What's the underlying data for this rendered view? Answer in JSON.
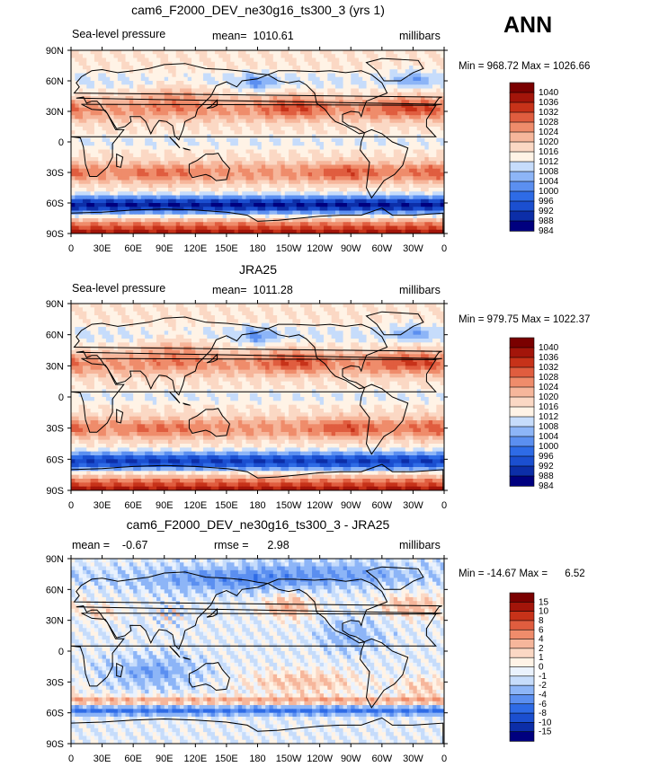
{
  "season": "ANN",
  "units": "millibars",
  "colors": {
    "abs": [
      "#00007f",
      "#0c2ea8",
      "#1b4fd0",
      "#2e6be6",
      "#5b8ff0",
      "#8db5f7",
      "#c6dcfb",
      "#fff3e6",
      "#fbd8c4",
      "#f6b69b",
      "#ef8c6b",
      "#e05d3f",
      "#c73219",
      "#a3150a",
      "#7a0000"
    ],
    "diff": [
      "#00007f",
      "#0c2ea8",
      "#1b4fd0",
      "#2e6be6",
      "#5b8ff0",
      "#8db5f7",
      "#c6dcfb",
      "#eaf2fd",
      "#fff3e6",
      "#fbd8c4",
      "#f6b69b",
      "#ef8c6b",
      "#e05d3f",
      "#c73219",
      "#a3150a",
      "#7a0000"
    ]
  },
  "panels": [
    {
      "title": "cam6_F2000_DEV_ne30g16_ts300_3 (yrs 1)",
      "left_label": "Sea-level pressure",
      "center_label": "mean=  1010.61",
      "right_label": "millibars",
      "minmax": "Min = 968.72 Max = 1026.66"
    },
    {
      "title": "JRA25",
      "left_label": "Sea-level pressure",
      "center_label": "mean=  1011.28",
      "right_label": "millibars",
      "minmax": "Min = 979.75 Max = 1022.37"
    },
    {
      "title": "cam6_F2000_DEV_ne30g16_ts300_3 - JRA25",
      "left_label": "mean =    -0.67",
      "center_label": "rmse =      2.98",
      "right_label": "millibars",
      "minmax": "Min = -14.67 Max =      6.52"
    }
  ],
  "chart_data": [
    {
      "type": "heatmap",
      "title": "cam6_F2000_DEV_ne30g16_ts300_3 (yrs 1)",
      "variable": "Sea-level pressure",
      "units": "millibars",
      "mean": 1010.61,
      "min": 968.72,
      "max": 1026.66,
      "x_ticks": [
        "0",
        "30E",
        "60E",
        "90E",
        "120E",
        "150E",
        "180",
        "150W",
        "120W",
        "90W",
        "60W",
        "30W",
        "0"
      ],
      "y_ticks": [
        "90N",
        "60N",
        "30N",
        "0",
        "30S",
        "60S",
        "90S"
      ],
      "colorbar_levels": [
        "1040",
        "1036",
        "1032",
        "1028",
        "1024",
        "1020",
        "1016",
        "1012",
        "1008",
        "1004",
        "1000",
        "996",
        "992",
        "988",
        "984"
      ]
    },
    {
      "type": "heatmap",
      "title": "JRA25",
      "variable": "Sea-level pressure",
      "units": "millibars",
      "mean": 1011.28,
      "min": 979.75,
      "max": 1022.37,
      "x_ticks": [
        "0",
        "30E",
        "60E",
        "90E",
        "120E",
        "150E",
        "180",
        "150W",
        "120W",
        "90W",
        "60W",
        "30W",
        "0"
      ],
      "y_ticks": [
        "90N",
        "60N",
        "30N",
        "0",
        "30S",
        "60S",
        "90S"
      ],
      "colorbar_levels": [
        "1040",
        "1036",
        "1032",
        "1028",
        "1024",
        "1020",
        "1016",
        "1012",
        "1008",
        "1004",
        "1000",
        "996",
        "992",
        "988",
        "984"
      ]
    },
    {
      "type": "heatmap",
      "title": "cam6_F2000_DEV_ne30g16_ts300_3 - JRA25",
      "units": "millibars",
      "mean": -0.67,
      "rmse": 2.98,
      "min": -14.67,
      "max": 6.52,
      "x_ticks": [
        "0",
        "30E",
        "60E",
        "90E",
        "120E",
        "150E",
        "180",
        "150W",
        "120W",
        "90W",
        "60W",
        "30W",
        "0"
      ],
      "y_ticks": [
        "90N",
        "60N",
        "30N",
        "0",
        "30S",
        "60S",
        "90S"
      ],
      "colorbar_levels": [
        "15",
        "10",
        "8",
        "6",
        "4",
        "2",
        "1",
        "0",
        "-1",
        "-2",
        "-4",
        "-6",
        "-8",
        "-10",
        "-15"
      ]
    }
  ]
}
